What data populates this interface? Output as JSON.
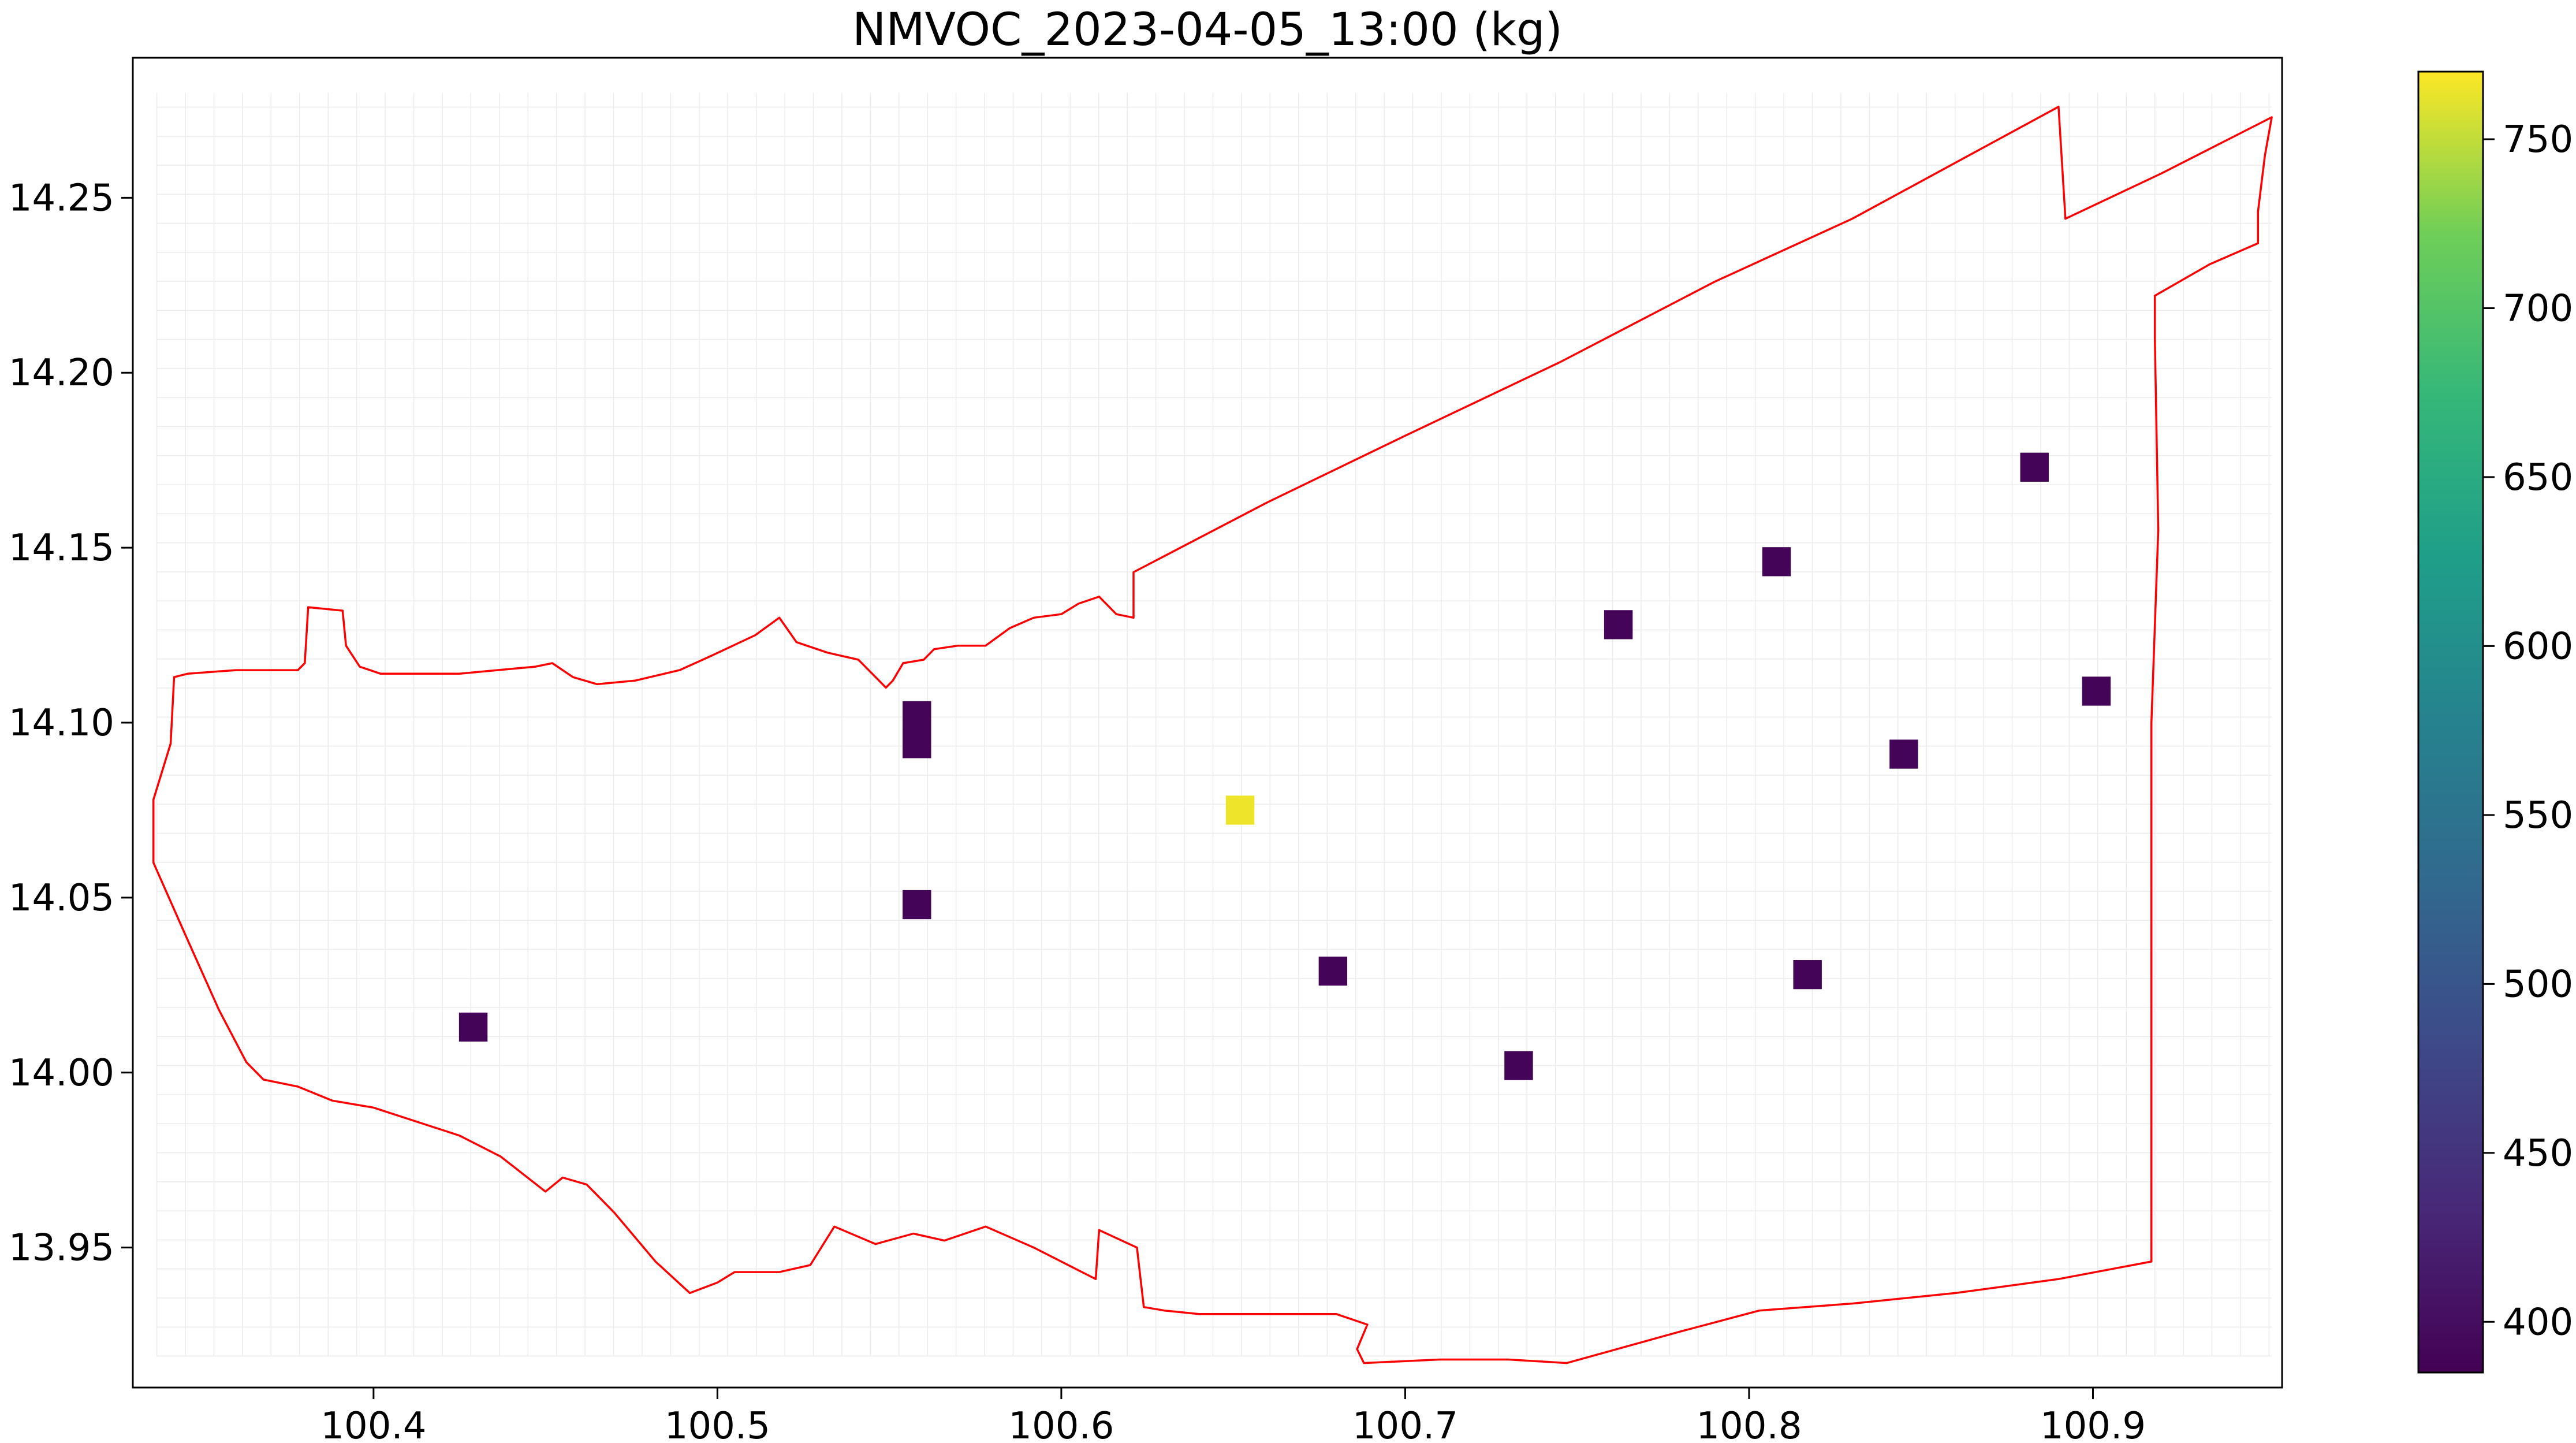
{
  "title": "NMVOC_2023-04-05_13:00 (kg)",
  "chart_data": {
    "type": "heatmap",
    "title": "NMVOC_2023-04-05_13:00 (kg)",
    "xlabel": "",
    "ylabel": "",
    "xlim": [
      100.33,
      100.955
    ],
    "ylim": [
      13.91,
      14.29
    ],
    "xticks": [
      100.4,
      100.5,
      100.6,
      100.7,
      100.8,
      100.9
    ],
    "xtick_labels": [
      "100.4",
      "100.5",
      "100.6",
      "100.7",
      "100.8",
      "100.9"
    ],
    "yticks": [
      13.95,
      14.0,
      14.05,
      14.1,
      14.15,
      14.2,
      14.25
    ],
    "ytick_labels": [
      "13.95",
      "14.00",
      "14.05",
      "14.10",
      "14.15",
      "14.20",
      "14.25"
    ],
    "grid": true,
    "grid_cell_deg": 0.0083,
    "colormap": "viridis",
    "color_range": [
      385,
      770
    ],
    "colorbar_ticks": [
      400,
      450,
      500,
      550,
      600,
      650,
      700,
      750
    ],
    "colorbar_labels": [
      "400",
      "450",
      "500",
      "550",
      "600",
      "650",
      "700",
      "750"
    ],
    "boundary_color": "#ff0000",
    "points": [
      {
        "lon": 100.429,
        "lat": 14.013,
        "value": 390
      },
      {
        "lon": 100.558,
        "lat": 14.102,
        "value": 390
      },
      {
        "lon": 100.558,
        "lat": 14.094,
        "value": 390
      },
      {
        "lon": 100.558,
        "lat": 14.048,
        "value": 390
      },
      {
        "lon": 100.652,
        "lat": 14.075,
        "value": 765
      },
      {
        "lon": 100.679,
        "lat": 14.029,
        "value": 390
      },
      {
        "lon": 100.733,
        "lat": 14.002,
        "value": 390
      },
      {
        "lon": 100.762,
        "lat": 14.128,
        "value": 390
      },
      {
        "lon": 100.808,
        "lat": 14.146,
        "value": 390
      },
      {
        "lon": 100.817,
        "lat": 14.028,
        "value": 390
      },
      {
        "lon": 100.845,
        "lat": 14.091,
        "value": 390
      },
      {
        "lon": 100.883,
        "lat": 14.173,
        "value": 390
      },
      {
        "lon": 100.901,
        "lat": 14.109,
        "value": 390
      }
    ],
    "boundary": [
      [
        100.342,
        14.113
      ],
      [
        100.346,
        14.114
      ],
      [
        100.36,
        14.115
      ],
      [
        100.378,
        14.115
      ],
      [
        100.38,
        14.117
      ],
      [
        100.381,
        14.133
      ],
      [
        100.391,
        14.132
      ],
      [
        100.392,
        14.122
      ],
      [
        100.396,
        14.116
      ],
      [
        100.402,
        14.114
      ],
      [
        100.425,
        14.114
      ],
      [
        100.436,
        14.115
      ],
      [
        100.447,
        14.116
      ],
      [
        100.452,
        14.117
      ],
      [
        100.458,
        14.113
      ],
      [
        100.465,
        14.111
      ],
      [
        100.476,
        14.112
      ],
      [
        100.489,
        14.115
      ],
      [
        100.498,
        14.119
      ],
      [
        100.511,
        14.125
      ],
      [
        100.518,
        14.13
      ],
      [
        100.523,
        14.123
      ],
      [
        100.532,
        14.12
      ],
      [
        100.541,
        14.118
      ],
      [
        100.545,
        14.114
      ],
      [
        100.549,
        14.11
      ],
      [
        100.551,
        14.112
      ],
      [
        100.554,
        14.117
      ],
      [
        100.56,
        14.118
      ],
      [
        100.563,
        14.121
      ],
      [
        100.57,
        14.122
      ],
      [
        100.578,
        14.122
      ],
      [
        100.585,
        14.127
      ],
      [
        100.592,
        14.13
      ],
      [
        100.6,
        14.131
      ],
      [
        100.605,
        14.134
      ],
      [
        100.611,
        14.136
      ],
      [
        100.616,
        14.131
      ],
      [
        100.621,
        14.13
      ],
      [
        100.621,
        14.143
      ],
      [
        100.66,
        14.163
      ],
      [
        100.7,
        14.182
      ],
      [
        100.745,
        14.203
      ],
      [
        100.79,
        14.226
      ],
      [
        100.83,
        14.244
      ],
      [
        100.86,
        14.26
      ],
      [
        100.89,
        14.276
      ],
      [
        100.892,
        14.244
      ],
      [
        100.92,
        14.257
      ],
      [
        100.952,
        14.273
      ],
      [
        100.95,
        14.262
      ],
      [
        100.948,
        14.246
      ],
      [
        100.948,
        14.237
      ],
      [
        100.934,
        14.231
      ],
      [
        100.918,
        14.222
      ],
      [
        100.918,
        14.21
      ],
      [
        100.919,
        14.155
      ],
      [
        100.917,
        14.1
      ],
      [
        100.917,
        14.05
      ],
      [
        100.917,
        14.0
      ],
      [
        100.917,
        13.946
      ],
      [
        100.89,
        13.941
      ],
      [
        100.86,
        13.937
      ],
      [
        100.83,
        13.934
      ],
      [
        100.803,
        13.932
      ],
      [
        100.78,
        13.926
      ],
      [
        100.747,
        13.917
      ],
      [
        100.73,
        13.918
      ],
      [
        100.71,
        13.918
      ],
      [
        100.688,
        13.917
      ],
      [
        100.686,
        13.921
      ],
      [
        100.689,
        13.928
      ],
      [
        100.68,
        13.931
      ],
      [
        100.658,
        13.931
      ],
      [
        100.64,
        13.931
      ],
      [
        100.63,
        13.932
      ],
      [
        100.624,
        13.933
      ],
      [
        100.622,
        13.95
      ],
      [
        100.611,
        13.955
      ],
      [
        100.61,
        13.941
      ],
      [
        100.592,
        13.95
      ],
      [
        100.578,
        13.956
      ],
      [
        100.566,
        13.952
      ],
      [
        100.557,
        13.954
      ],
      [
        100.546,
        13.951
      ],
      [
        100.534,
        13.956
      ],
      [
        100.527,
        13.945
      ],
      [
        100.518,
        13.943
      ],
      [
        100.505,
        13.943
      ],
      [
        100.5,
        13.94
      ],
      [
        100.492,
        13.937
      ],
      [
        100.482,
        13.946
      ],
      [
        100.47,
        13.96
      ],
      [
        100.462,
        13.968
      ],
      [
        100.455,
        13.97
      ],
      [
        100.45,
        13.966
      ],
      [
        100.437,
        13.976
      ],
      [
        100.425,
        13.982
      ],
      [
        100.4,
        13.99
      ],
      [
        100.388,
        13.992
      ],
      [
        100.378,
        13.996
      ],
      [
        100.368,
        13.998
      ],
      [
        100.363,
        14.003
      ],
      [
        100.355,
        14.018
      ],
      [
        100.345,
        14.04
      ],
      [
        100.336,
        14.06
      ],
      [
        100.336,
        14.078
      ],
      [
        100.341,
        14.094
      ],
      [
        100.342,
        14.113
      ]
    ]
  }
}
